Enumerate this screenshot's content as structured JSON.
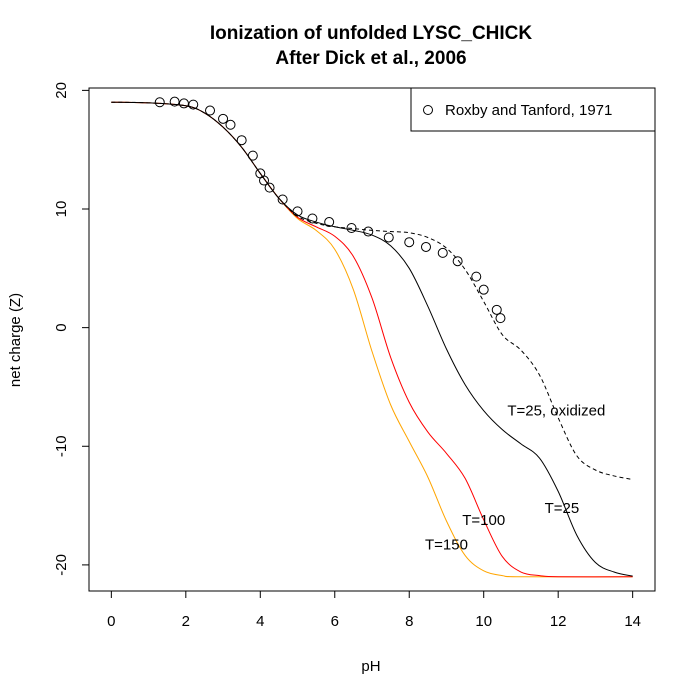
{
  "chart_data": {
    "type": "line",
    "title": "Ionization of unfolded LYSC_CHICK",
    "subtitle": "After Dick et al., 2006",
    "xlabel": "pH",
    "ylabel": "net charge (Z)",
    "xlim": [
      -0.6,
      14.6
    ],
    "ylim": [
      -22.2,
      20.2
    ],
    "x_ticks": [
      0,
      2,
      4,
      6,
      8,
      10,
      12,
      14
    ],
    "y_ticks": [
      -20,
      -10,
      0,
      10,
      20
    ],
    "grid": false,
    "legend": {
      "position": "top-right",
      "entries": [
        {
          "label": "Roxby and Tanford, 1971",
          "marker": "open-circle"
        }
      ]
    },
    "series": [
      {
        "label": "T=25, oxidized",
        "style": "dashed",
        "color": "#000000",
        "points": [
          [
            0,
            19.0
          ],
          [
            1,
            18.95
          ],
          [
            2,
            18.7
          ],
          [
            2.5,
            18.1
          ],
          [
            3,
            16.9
          ],
          [
            3.5,
            15.2
          ],
          [
            4,
            13.0
          ],
          [
            4.5,
            10.9
          ],
          [
            5,
            9.4
          ],
          [
            5.5,
            8.8
          ],
          [
            6,
            8.5
          ],
          [
            6.5,
            8.35
          ],
          [
            7,
            8.2
          ],
          [
            7.5,
            8.1
          ],
          [
            8,
            8.0
          ],
          [
            8.5,
            7.6
          ],
          [
            9,
            6.7
          ],
          [
            9.5,
            4.9
          ],
          [
            10,
            2.2
          ],
          [
            10.5,
            -0.6
          ],
          [
            11,
            -1.9
          ],
          [
            11.5,
            -4.0
          ],
          [
            12,
            -7.6
          ],
          [
            12.5,
            -10.8
          ],
          [
            13,
            -12.0
          ],
          [
            13.5,
            -12.5
          ],
          [
            14,
            -12.8
          ]
        ]
      },
      {
        "label": "T=25",
        "style": "solid",
        "color": "#000000",
        "points": [
          [
            0,
            19.0
          ],
          [
            1,
            18.95
          ],
          [
            2,
            18.7
          ],
          [
            2.5,
            18.1
          ],
          [
            3,
            16.9
          ],
          [
            3.5,
            15.2
          ],
          [
            4,
            13.0
          ],
          [
            4.5,
            10.9
          ],
          [
            5,
            9.5
          ],
          [
            5.5,
            8.9
          ],
          [
            6,
            8.5
          ],
          [
            6.5,
            8.2
          ],
          [
            7,
            7.8
          ],
          [
            7.5,
            6.9
          ],
          [
            8,
            5.0
          ],
          [
            8.5,
            1.8
          ],
          [
            9,
            -1.8
          ],
          [
            9.5,
            -4.8
          ],
          [
            10,
            -7.0
          ],
          [
            10.5,
            -8.6
          ],
          [
            11,
            -9.8
          ],
          [
            11.5,
            -11.0
          ],
          [
            12,
            -13.8
          ],
          [
            12.5,
            -17.5
          ],
          [
            13,
            -19.8
          ],
          [
            13.5,
            -20.6
          ],
          [
            14,
            -20.95
          ]
        ]
      },
      {
        "label": "T=100",
        "style": "solid",
        "color": "#ff0000",
        "points": [
          [
            0,
            19.0
          ],
          [
            1,
            18.95
          ],
          [
            2,
            18.7
          ],
          [
            2.5,
            18.1
          ],
          [
            3,
            16.9
          ],
          [
            3.5,
            15.2
          ],
          [
            4,
            13.0
          ],
          [
            4.5,
            10.9
          ],
          [
            5,
            9.3
          ],
          [
            5.5,
            8.5
          ],
          [
            6,
            7.7
          ],
          [
            6.5,
            6.0
          ],
          [
            7,
            2.5
          ],
          [
            7.5,
            -2.5
          ],
          [
            8,
            -6.3
          ],
          [
            8.5,
            -8.8
          ],
          [
            9,
            -10.6
          ],
          [
            9.5,
            -12.7
          ],
          [
            10,
            -16.2
          ],
          [
            10.5,
            -19.3
          ],
          [
            11,
            -20.6
          ],
          [
            11.5,
            -20.9
          ],
          [
            12,
            -21.0
          ],
          [
            14,
            -21.0
          ]
        ]
      },
      {
        "label": "T=150",
        "style": "solid",
        "color": "#ffa500",
        "points": [
          [
            0,
            19.0
          ],
          [
            1,
            18.95
          ],
          [
            2,
            18.7
          ],
          [
            2.5,
            18.1
          ],
          [
            3,
            16.9
          ],
          [
            3.5,
            15.2
          ],
          [
            4,
            13.0
          ],
          [
            4.5,
            10.9
          ],
          [
            5,
            9.2
          ],
          [
            5.5,
            8.2
          ],
          [
            6,
            6.6
          ],
          [
            6.5,
            3.2
          ],
          [
            7,
            -2.0
          ],
          [
            7.5,
            -6.5
          ],
          [
            8,
            -9.6
          ],
          [
            8.5,
            -12.6
          ],
          [
            9,
            -16.3
          ],
          [
            9.5,
            -19.2
          ],
          [
            10,
            -20.5
          ],
          [
            10.5,
            -20.9
          ],
          [
            11,
            -21.0
          ],
          [
            14,
            -21.0
          ]
        ]
      }
    ],
    "points_series": {
      "label": "Roxby and Tanford, 1971",
      "marker": "open-circle",
      "points": [
        [
          1.3,
          19.0
        ],
        [
          1.7,
          19.05
        ],
        [
          1.95,
          18.9
        ],
        [
          2.2,
          18.8
        ],
        [
          2.65,
          18.3
        ],
        [
          3.0,
          17.6
        ],
        [
          3.2,
          17.1
        ],
        [
          3.5,
          15.8
        ],
        [
          3.8,
          14.5
        ],
        [
          4.0,
          13.0
        ],
        [
          4.1,
          12.4
        ],
        [
          4.25,
          11.8
        ],
        [
          4.6,
          10.8
        ],
        [
          5.0,
          9.8
        ],
        [
          5.4,
          9.2
        ],
        [
          5.85,
          8.9
        ],
        [
          6.45,
          8.4
        ],
        [
          6.9,
          8.1
        ],
        [
          7.45,
          7.6
        ],
        [
          8.0,
          7.2
        ],
        [
          8.45,
          6.8
        ],
        [
          8.9,
          6.3
        ],
        [
          9.3,
          5.6
        ],
        [
          9.8,
          4.3
        ],
        [
          10.0,
          3.2
        ],
        [
          10.35,
          1.5
        ],
        [
          10.45,
          0.8
        ]
      ]
    },
    "annotations": [
      {
        "text": "T=25, oxidized",
        "x": 11.95,
        "y": -7.0
      },
      {
        "text": "T=25",
        "x": 12.1,
        "y": -15.2
      },
      {
        "text": "T=100",
        "x": 10.0,
        "y": -16.2
      },
      {
        "text": "T=150",
        "x": 9.0,
        "y": -18.3
      }
    ]
  }
}
